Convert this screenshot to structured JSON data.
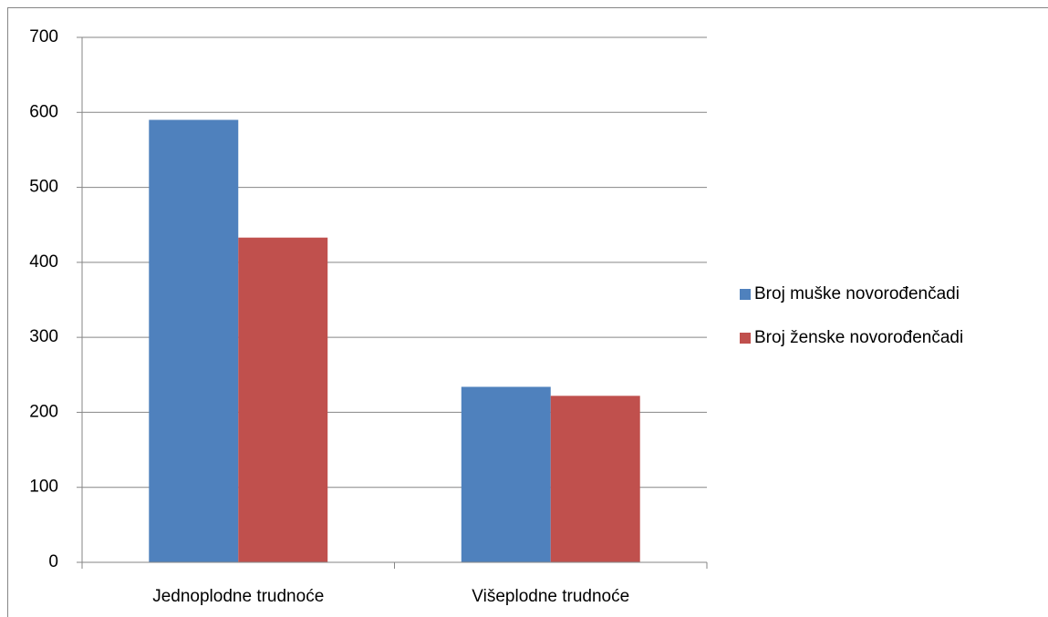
{
  "chart_data": {
    "type": "bar",
    "categories": [
      "Jednoplodne trudnoće",
      "Višeplodne trudnoće"
    ],
    "series": [
      {
        "name": "Broj muške novorođenčadi",
        "color": "#4f81bd",
        "values": [
          590,
          234
        ]
      },
      {
        "name": "Broj ženske novorođenčadi",
        "color": "#c0504d",
        "values": [
          433,
          222
        ]
      }
    ],
    "ylim": [
      0,
      700
    ],
    "yticks": [
      0,
      100,
      200,
      300,
      400,
      500,
      600,
      700
    ],
    "grid": true,
    "legend": "right"
  }
}
